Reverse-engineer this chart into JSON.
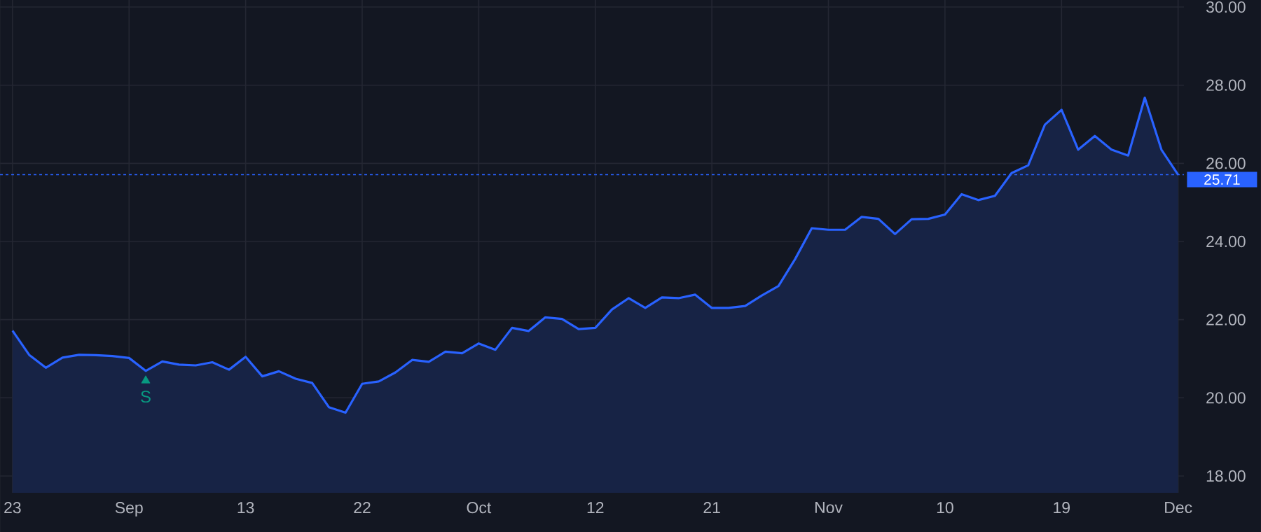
{
  "chart_data": {
    "type": "area",
    "categories": [
      "23",
      null,
      null,
      null,
      null,
      null,
      null,
      "Sep",
      null,
      null,
      null,
      null,
      null,
      null,
      "13",
      null,
      null,
      null,
      null,
      null,
      null,
      "22",
      null,
      null,
      null,
      null,
      null,
      null,
      "Oct",
      null,
      null,
      null,
      null,
      null,
      null,
      "12",
      null,
      null,
      null,
      null,
      null,
      null,
      "21",
      null,
      null,
      null,
      null,
      null,
      null,
      "Nov",
      null,
      null,
      null,
      null,
      null,
      null,
      "10",
      null,
      null,
      null,
      null,
      null,
      null,
      "19",
      null,
      null,
      null,
      null,
      null,
      null,
      "Dec"
    ],
    "series": [
      {
        "type": "area",
        "color": "#2962ff",
        "values": [
          21.72,
          21.1,
          20.77,
          21.03,
          21.1,
          21.09,
          21.07,
          21.02,
          20.69,
          20.93,
          20.85,
          20.83,
          20.91,
          20.72,
          21.05,
          20.55,
          20.68,
          20.49,
          20.38,
          19.76,
          19.62,
          20.36,
          20.42,
          20.65,
          20.97,
          20.92,
          21.18,
          21.14,
          21.39,
          21.23,
          21.79,
          21.71,
          22.06,
          22.02,
          21.76,
          21.79,
          22.26,
          22.55,
          22.3,
          22.57,
          22.55,
          22.64,
          22.3,
          22.3,
          22.35,
          22.62,
          22.86,
          23.55,
          24.34,
          24.3,
          24.3,
          24.63,
          24.58,
          24.19,
          24.57,
          24.58,
          24.69,
          25.21,
          25.06,
          25.17,
          25.75,
          25.95,
          26.99,
          27.37,
          26.35,
          26.7,
          26.35,
          26.2,
          27.68,
          26.35,
          25.71
        ]
      },
      {
        "type": "scatter",
        "name": "S",
        "color": "#089981",
        "marker": "triangle",
        "values": [
          null,
          null,
          null,
          null,
          null,
          null,
          null,
          null,
          20.44,
          null,
          null,
          null,
          null,
          null,
          null,
          null,
          null,
          null,
          null,
          null,
          null,
          null,
          null,
          null,
          null,
          null,
          null,
          null,
          null,
          null,
          null,
          null,
          null,
          null,
          null,
          null,
          null,
          null,
          null,
          null,
          null,
          null,
          null,
          null,
          null,
          null,
          null,
          null,
          null,
          null,
          null,
          null,
          null,
          null,
          null,
          null,
          null,
          null,
          null,
          null,
          null,
          null,
          null,
          null,
          null,
          null,
          null,
          null,
          null,
          null,
          null
        ]
      }
    ],
    "ylim": [
      17.57,
      30.18
    ],
    "yticks": [
      {
        "value": 18,
        "label": "18.00"
      },
      {
        "value": 20,
        "label": "20.00"
      },
      {
        "value": 22,
        "label": "22.00"
      },
      {
        "value": 24,
        "label": "24.00"
      },
      {
        "value": 26,
        "label": "26.00"
      },
      {
        "value": 28,
        "label": "28.00"
      },
      {
        "value": 30,
        "label": "30.00"
      }
    ],
    "grid": true,
    "ref_lines": [
      {
        "axis": "y",
        "value": 25.71,
        "label": "25.71",
        "color": "#2962ff",
        "line_style": "dotted"
      }
    ]
  }
}
